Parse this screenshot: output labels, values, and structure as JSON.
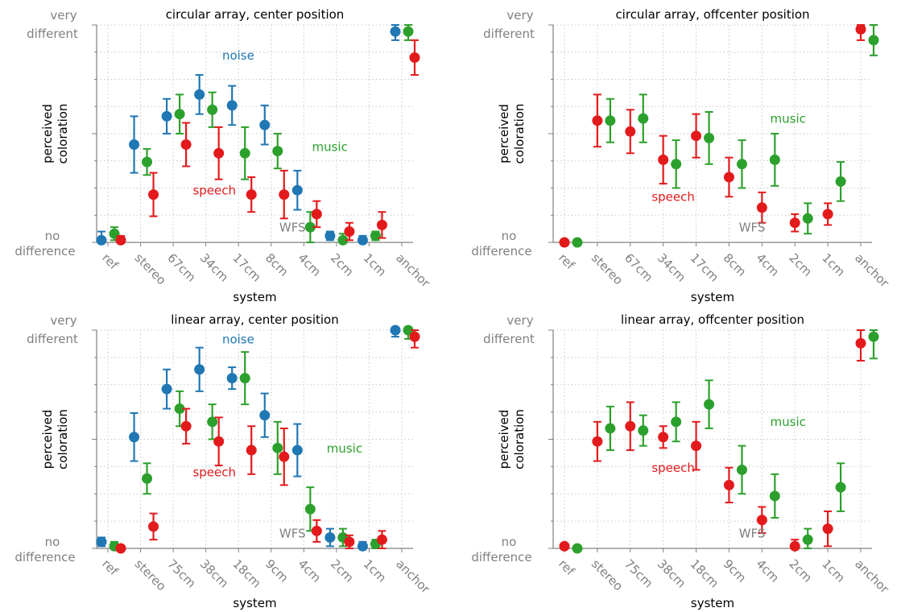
{
  "figure": {
    "y_tick_labels": {
      "top_line1": "very",
      "top_line2": "different",
      "bottom_line1": "no",
      "bottom_line2": "difference"
    },
    "ylabel_line1": "perceived",
    "ylabel_line2": "coloration",
    "xlabel": "system"
  },
  "colors": {
    "noise": "#1f77b4",
    "music": "#2ca02c",
    "speech": "#e31a1c",
    "axis": "#808080",
    "grid": "#c8c8c8"
  },
  "chart_data": [
    {
      "type": "scatter",
      "title": "circular array, center position",
      "xlabel": "system",
      "ylabel": "perceived coloration",
      "ylim": [
        0,
        1
      ],
      "grid": true,
      "categories": [
        "ref",
        "stereo",
        "67cm",
        "34cm",
        "17cm",
        "8cm",
        "4cm",
        "2cm",
        "1cm",
        "anchor"
      ],
      "series": [
        {
          "name": "noise",
          "values": [
            0.01,
            0.45,
            0.58,
            0.68,
            0.63,
            0.54,
            0.24,
            0.03,
            0.01,
            0.97
          ],
          "err": [
            0.04,
            0.13,
            0.08,
            0.09,
            0.09,
            0.09,
            0.09,
            0.02,
            0.02,
            0.04
          ]
        },
        {
          "name": "music",
          "values": [
            0.04,
            0.37,
            0.59,
            0.61,
            0.41,
            0.42,
            0.07,
            0.01,
            0.03,
            0.97
          ],
          "err": [
            0.03,
            0.06,
            0.09,
            0.08,
            0.12,
            0.08,
            0.07,
            0.03,
            0.02,
            0.04
          ]
        },
        {
          "name": "speech",
          "values": [
            0.01,
            0.22,
            0.45,
            0.41,
            0.22,
            0.22,
            0.13,
            0.05,
            0.08,
            0.85
          ],
          "err": [
            0.02,
            0.1,
            0.1,
            0.12,
            0.08,
            0.11,
            0.06,
            0.04,
            0.06,
            0.08
          ]
        }
      ],
      "annotations": [
        {
          "text": "noise",
          "series": "noise",
          "x": 3.5,
          "y": 0.84
        },
        {
          "text": "music",
          "series": "music",
          "x": 6.25,
          "y": 0.42
        },
        {
          "text": "speech",
          "series": "speech",
          "x": 2.6,
          "y": 0.22
        },
        {
          "text": "WFS",
          "series": "wfs",
          "x": 5.25,
          "y": 0.05
        }
      ]
    },
    {
      "type": "scatter",
      "title": "circular array, offcenter position",
      "xlabel": "system",
      "ylabel": "perceived coloration",
      "ylim": [
        0,
        1
      ],
      "grid": true,
      "categories": [
        "ref",
        "stereo",
        "67cm",
        "34cm",
        "17cm",
        "8cm",
        "4cm",
        "2cm",
        "1cm",
        "anchor"
      ],
      "series": [
        {
          "name": "music",
          "values": [
            0.0,
            0.56,
            0.57,
            0.36,
            0.48,
            0.36,
            0.38,
            0.11,
            0.28,
            0.93
          ],
          "err": [
            0.01,
            0.1,
            0.11,
            0.11,
            0.12,
            0.11,
            0.12,
            0.07,
            0.09,
            0.07
          ]
        },
        {
          "name": "speech",
          "values": [
            0.0,
            0.56,
            0.51,
            0.38,
            0.49,
            0.3,
            0.16,
            0.09,
            0.13,
            0.98
          ],
          "err": [
            0.01,
            0.12,
            0.1,
            0.11,
            0.1,
            0.09,
            0.07,
            0.04,
            0.05,
            0.05
          ]
        }
      ],
      "annotations": [
        {
          "text": "music",
          "series": "music",
          "x": 6.25,
          "y": 0.55
        },
        {
          "text": "speech",
          "series": "speech",
          "x": 2.65,
          "y": 0.19
        },
        {
          "text": "WFS",
          "series": "wfs",
          "x": 5.3,
          "y": 0.05
        }
      ]
    },
    {
      "type": "scatter",
      "title": "linear array, center position",
      "xlabel": "system",
      "ylabel": "perceived coloration",
      "ylim": [
        0,
        1
      ],
      "grid": true,
      "categories": [
        "ref",
        "stereo",
        "75cm",
        "38cm",
        "18cm",
        "9cm",
        "4cm",
        "2cm",
        "1cm",
        "anchor"
      ],
      "series": [
        {
          "name": "noise",
          "values": [
            0.03,
            0.51,
            0.73,
            0.82,
            0.78,
            0.61,
            0.45,
            0.05,
            0.01,
            1.0
          ],
          "err": [
            0.02,
            0.11,
            0.09,
            0.1,
            0.05,
            0.1,
            0.12,
            0.04,
            0.02,
            0.03
          ]
        },
        {
          "name": "music",
          "values": [
            0.01,
            0.32,
            0.64,
            0.58,
            0.78,
            0.46,
            0.18,
            0.05,
            0.02,
            1.0
          ],
          "err": [
            0.02,
            0.07,
            0.08,
            0.08,
            0.12,
            0.12,
            0.1,
            0.04,
            0.02,
            0.04
          ]
        },
        {
          "name": "speech",
          "values": [
            0.0,
            0.1,
            0.56,
            0.49,
            0.45,
            0.42,
            0.08,
            0.03,
            0.04,
            0.97
          ],
          "err": [
            0.01,
            0.06,
            0.08,
            0.11,
            0.11,
            0.13,
            0.05,
            0.03,
            0.04,
            0.05
          ]
        }
      ],
      "annotations": [
        {
          "text": "noise",
          "series": "noise",
          "x": 3.5,
          "y": 0.94
        },
        {
          "text": "music",
          "series": "music",
          "x": 6.7,
          "y": 0.44
        },
        {
          "text": "speech",
          "series": "speech",
          "x": 2.6,
          "y": 0.33
        },
        {
          "text": "WFS",
          "series": "wfs",
          "x": 5.25,
          "y": 0.05
        }
      ]
    },
    {
      "type": "scatter",
      "title": "linear array, offcenter position",
      "xlabel": "system",
      "ylabel": "perceived coloration",
      "ylim": [
        0,
        1
      ],
      "grid": true,
      "categories": [
        "ref",
        "stereo",
        "75cm",
        "38cm",
        "18cm",
        "9cm",
        "4cm",
        "2cm",
        "1cm",
        "anchor"
      ],
      "series": [
        {
          "name": "music",
          "values": [
            0.0,
            0.55,
            0.54,
            0.58,
            0.66,
            0.36,
            0.24,
            0.04,
            0.28,
            0.97
          ],
          "err": [
            0.01,
            0.1,
            0.07,
            0.09,
            0.11,
            0.11,
            0.1,
            0.05,
            0.11,
            0.1
          ]
        },
        {
          "name": "speech",
          "values": [
            0.01,
            0.49,
            0.56,
            0.51,
            0.47,
            0.29,
            0.13,
            0.01,
            0.09,
            0.94
          ],
          "err": [
            0.01,
            0.09,
            0.11,
            0.05,
            0.11,
            0.08,
            0.06,
            0.03,
            0.08,
            0.08
          ]
        }
      ],
      "annotations": [
        {
          "text": "music",
          "series": "music",
          "x": 6.25,
          "y": 0.56
        },
        {
          "text": "speech",
          "series": "speech",
          "x": 2.65,
          "y": 0.35
        },
        {
          "text": "WFS",
          "series": "wfs",
          "x": 5.3,
          "y": 0.05
        }
      ]
    }
  ]
}
